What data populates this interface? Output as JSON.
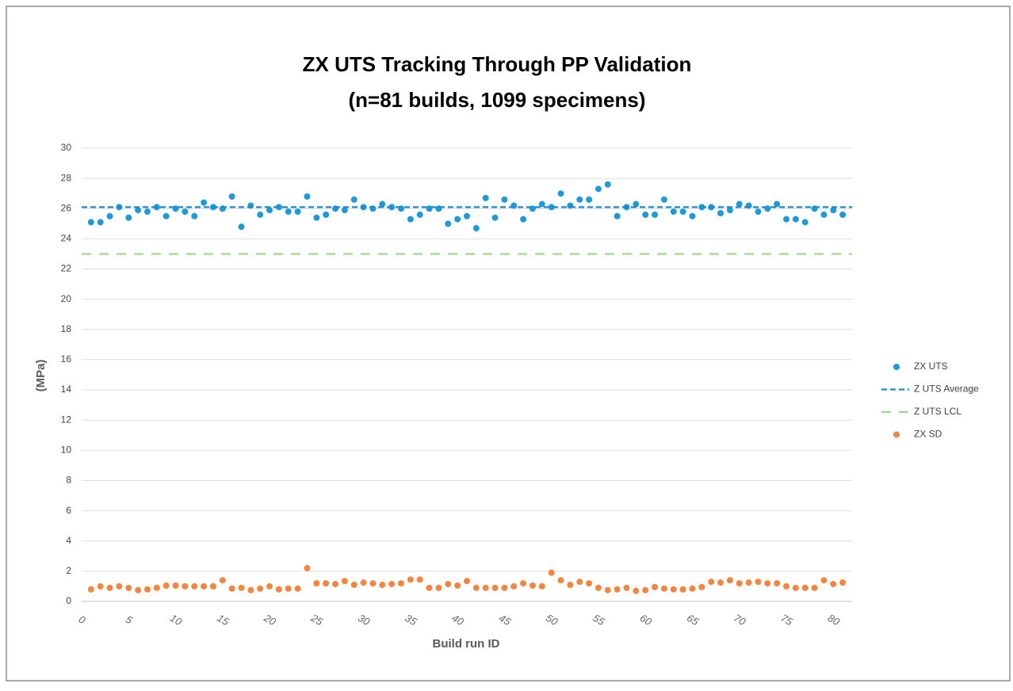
{
  "chart_data": {
    "type": "scatter",
    "title": "ZX UTS Tracking Through PP Validation",
    "subtitle": "(n=81 builds, 1099 specimens)",
    "x_label": "Build run ID",
    "y_label": "(MPa)",
    "x": [
      1,
      2,
      3,
      4,
      5,
      6,
      7,
      8,
      9,
      10,
      11,
      12,
      13,
      14,
      15,
      16,
      17,
      18,
      19,
      20,
      21,
      22,
      23,
      24,
      25,
      26,
      27,
      28,
      29,
      30,
      31,
      32,
      33,
      34,
      35,
      36,
      37,
      38,
      39,
      40,
      41,
      42,
      43,
      44,
      45,
      46,
      47,
      48,
      49,
      50,
      51,
      52,
      53,
      54,
      55,
      56,
      57,
      58,
      59,
      60,
      61,
      62,
      63,
      64,
      65,
      66,
      67,
      68,
      69,
      70,
      71,
      72,
      73,
      74,
      75,
      76,
      77,
      78,
      79,
      80,
      81
    ],
    "series": [
      {
        "name": "ZX UTS",
        "color": "#1f9ad8",
        "kind": "points",
        "values": [
          25.1,
          25.1,
          25.5,
          26.1,
          25.4,
          25.9,
          25.8,
          26.1,
          25.5,
          26.0,
          25.8,
          25.5,
          26.4,
          26.1,
          26.0,
          26.8,
          24.8,
          26.2,
          25.6,
          25.9,
          26.1,
          25.8,
          25.8,
          26.8,
          25.4,
          25.6,
          26.0,
          25.9,
          26.6,
          26.1,
          26.0,
          26.3,
          26.1,
          26.0,
          25.3,
          25.6,
          26.0,
          26.0,
          25.0,
          25.3,
          25.5,
          24.7,
          26.7,
          25.4,
          26.6,
          26.2,
          25.3,
          26.0,
          26.3,
          26.1,
          27.0,
          26.2,
          26.6,
          26.6,
          27.3,
          27.6,
          25.5,
          26.1,
          26.3,
          25.6,
          25.6,
          26.6,
          25.8,
          25.8,
          25.5,
          26.1,
          26.1,
          25.7,
          25.9,
          26.3,
          26.2,
          25.8,
          26.0,
          26.3,
          25.3,
          25.3,
          25.1,
          26.0,
          25.6,
          25.9,
          25.6
        ]
      },
      {
        "name": "Z UTS Average",
        "color": "#1a8ad4",
        "kind": "hline",
        "dash": "short",
        "value": 26.1
      },
      {
        "name": "Z UTS LCL",
        "color": "#9fd98a",
        "kind": "hline",
        "dash": "long",
        "value": 23
      },
      {
        "name": "ZX SD",
        "color": "#f4853f",
        "kind": "points",
        "values": [
          0.8,
          1.0,
          0.9,
          1.0,
          0.9,
          0.75,
          0.8,
          0.9,
          1.05,
          1.05,
          1.0,
          1.0,
          1.0,
          1.0,
          1.4,
          0.85,
          0.9,
          0.75,
          0.85,
          1.0,
          0.8,
          0.85,
          0.85,
          2.2,
          1.2,
          1.2,
          1.15,
          1.35,
          1.1,
          1.25,
          1.2,
          1.1,
          1.15,
          1.2,
          1.45,
          1.45,
          0.9,
          0.9,
          1.15,
          1.05,
          1.35,
          0.9,
          0.9,
          0.9,
          0.9,
          1.0,
          1.2,
          1.05,
          1.0,
          1.9,
          1.4,
          1.1,
          1.3,
          1.2,
          0.9,
          0.75,
          0.8,
          0.9,
          0.7,
          0.75,
          0.95,
          0.85,
          0.8,
          0.8,
          0.85,
          0.95,
          1.3,
          1.25,
          1.4,
          1.2,
          1.25,
          1.3,
          1.2,
          1.2,
          1.0,
          0.9,
          0.9,
          0.9,
          1.4,
          1.15,
          1.25
        ]
      }
    ],
    "xlim": [
      0,
      82
    ],
    "xticks": [
      0,
      5,
      10,
      15,
      20,
      25,
      30,
      35,
      40,
      45,
      50,
      55,
      60,
      65,
      70,
      75,
      80
    ],
    "ylim": [
      0,
      30
    ],
    "yticks": [
      0,
      2,
      4,
      6,
      8,
      10,
      12,
      14,
      16,
      18,
      20,
      22,
      24,
      26,
      28,
      30
    ],
    "grid": true,
    "legend": "right"
  }
}
